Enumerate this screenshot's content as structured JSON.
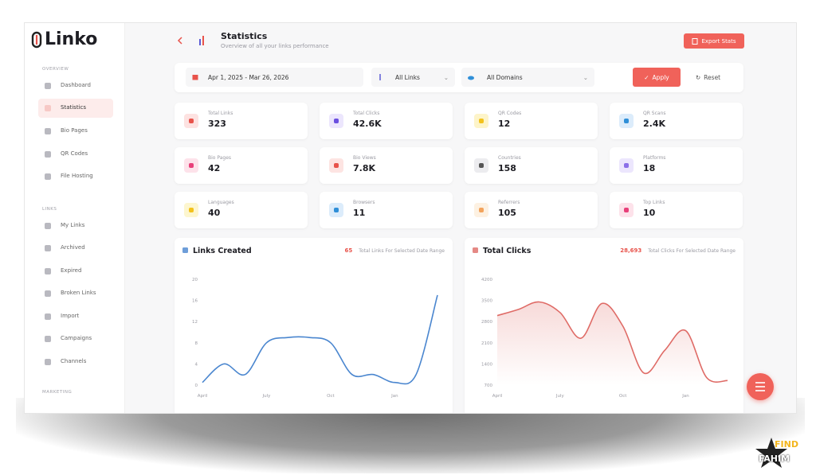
{
  "brand": "Linko",
  "sidebar": {
    "sections": [
      {
        "title": "OVERVIEW",
        "items": [
          "Dashboard",
          "Statistics",
          "Bio Pages",
          "QR Codes",
          "File Hosting"
        ]
      },
      {
        "title": "LINKS",
        "items": [
          "My Links",
          "Archived",
          "Expired",
          "Broken Links",
          "Import",
          "Campaigns",
          "Channels"
        ]
      },
      {
        "title": "MARKETING",
        "items": []
      }
    ]
  },
  "header": {
    "title": "Statistics",
    "subtitle": "Overview of all your links performance",
    "export": "Export Stats"
  },
  "filters": {
    "date": "Apr 1, 2025 - Mar 26, 2026",
    "links": "All Links",
    "domains": "All Domains",
    "apply": "Apply",
    "reset": "Reset"
  },
  "stats": [
    {
      "label": "Total Links",
      "value": "323"
    },
    {
      "label": "Total Clicks",
      "value": "42.6K"
    },
    {
      "label": "QR Codes",
      "value": "12"
    },
    {
      "label": "QR Scans",
      "value": "2.4K"
    },
    {
      "label": "Bio Pages",
      "value": "42"
    },
    {
      "label": "Bio Views",
      "value": "7.8K"
    },
    {
      "label": "Countries",
      "value": "158"
    },
    {
      "label": "Platforms",
      "value": "18"
    },
    {
      "label": "Languages",
      "value": "40"
    },
    {
      "label": "Browsers",
      "value": "11"
    },
    {
      "label": "Referrers",
      "value": "105"
    },
    {
      "label": "Top Links",
      "value": "10"
    }
  ],
  "chart_data": [
    {
      "type": "line",
      "title": "Links Created",
      "total": "65",
      "total_label": "Total Links For Selected Date Range",
      "categories": [
        "April",
        null,
        null,
        "July",
        null,
        null,
        "Oct",
        null,
        null,
        "Jan",
        null,
        null
      ],
      "values": [
        0.5,
        4,
        2,
        8,
        9,
        9,
        8,
        2,
        2,
        0.5,
        2,
        17
      ],
      "color": "#4a86cf",
      "area": false,
      "ylim": [
        0,
        20
      ],
      "yticks": [
        0,
        4,
        8,
        12,
        16,
        20
      ]
    },
    {
      "type": "line",
      "title": "Total Clicks",
      "total": "28,693",
      "total_label": "Total Clicks For Selected Date Range",
      "categories": [
        "April",
        null,
        null,
        "July",
        null,
        null,
        "Oct",
        null,
        null,
        "Jan",
        null,
        null
      ],
      "values": [
        3000,
        3200,
        3450,
        3100,
        2250,
        3400,
        2650,
        1100,
        1850,
        2500,
        950,
        850
      ],
      "color": "#df6b66",
      "area": true,
      "ylim": [
        700,
        4200
      ],
      "yticks": [
        700,
        1400,
        2100,
        2800,
        3500,
        4200
      ]
    }
  ],
  "watermark": {
    "top": "FIND",
    "bottom": "FAHIM"
  }
}
